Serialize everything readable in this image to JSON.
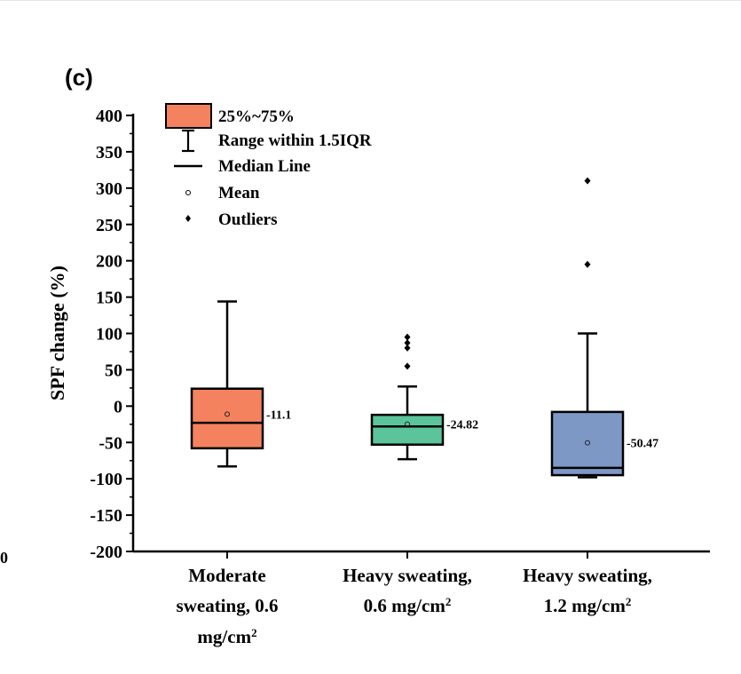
{
  "panel_label": "(c)",
  "edge_fragment": "0",
  "colors": {
    "moderate": "#f4825f",
    "heavy_06": "#5bc49a",
    "heavy_12": "#7e98c6",
    "axis": "#000000"
  },
  "legend": {
    "box": "25%~75%",
    "whisker": "Range within 1.5IQR",
    "median": "Median Line",
    "mean": "Mean",
    "outliers": "Outliers"
  },
  "chart_data": {
    "type": "box",
    "ylabel": "SPF change (%)",
    "xlabel": "",
    "ylim": [
      -200,
      400
    ],
    "yticks": [
      400,
      350,
      300,
      250,
      200,
      150,
      100,
      50,
      0,
      -50,
      -100,
      -150,
      -200
    ],
    "ytick_labels": [
      "400",
      "350",
      "300",
      "250",
      "200",
      "150",
      "100",
      "50",
      "0",
      "-50",
      "-100",
      "-150",
      "-200"
    ],
    "categories": [
      {
        "line1": "Moderate",
        "line2": "sweating, 0.6",
        "line3": "mg/cm",
        "sup": "2"
      },
      {
        "line1": "Heavy sweating,",
        "line2": "0.6 mg/cm",
        "sup": "2"
      },
      {
        "line1": "Heavy sweating,",
        "line2": "1.2 mg/cm",
        "sup": "2"
      }
    ],
    "series": [
      {
        "whisker_low": -83,
        "q1": -58,
        "median": -23,
        "q3": 24,
        "whisker_high": 144,
        "mean": -11.1,
        "mean_label": "-11.1",
        "outliers": [],
        "color_key": "moderate"
      },
      {
        "whisker_low": -73,
        "q1": -53,
        "median": -28,
        "q3": -12,
        "whisker_high": 27,
        "mean": -24.82,
        "mean_label": "-24.82",
        "outliers": [
          55,
          80,
          87,
          95
        ],
        "color_key": "heavy_06"
      },
      {
        "whisker_low": -98,
        "q1": -95,
        "median": -85,
        "q3": -8,
        "whisker_high": 100,
        "mean": -50.47,
        "mean_label": "-50.47",
        "outliers": [
          195,
          310
        ],
        "color_key": "heavy_12"
      }
    ]
  }
}
